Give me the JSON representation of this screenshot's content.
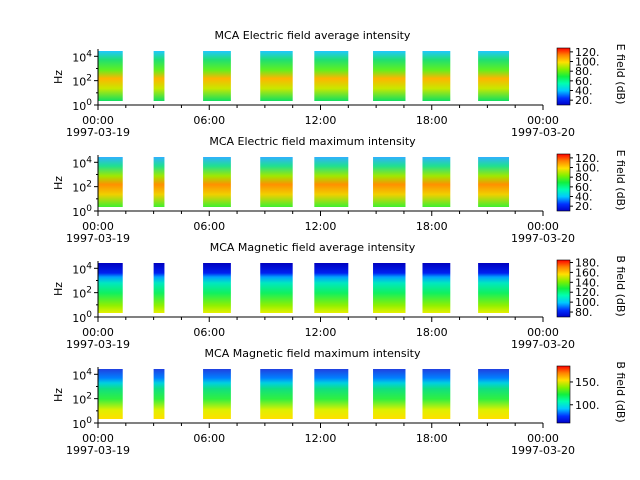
{
  "chart_data": [
    {
      "type": "heatmap",
      "title": "MCA  Electric field average intensity",
      "ylabel": "Hz",
      "y_scale": "log",
      "y_ticks": [
        {
          "base": "10",
          "exp": "0"
        },
        {
          "base": "10",
          "exp": "2"
        },
        {
          "base": "10",
          "exp": "4"
        }
      ],
      "x_ticks": [
        "00:00",
        "06:00",
        "12:00",
        "18:00",
        "00:00"
      ],
      "x_tick_dates": [
        "1997-03-19",
        "1997-03-20"
      ],
      "x_range": [
        "1997-03-19 00:00",
        "1997-03-20 00:00"
      ],
      "data_segments": [
        [
          "00:00",
          "01:20"
        ],
        [
          "03:00",
          "03:35"
        ],
        [
          "05:40",
          "07:10"
        ],
        [
          "08:45",
          "10:30"
        ],
        [
          "11:40",
          "13:30"
        ],
        [
          "14:50",
          "16:35"
        ],
        [
          "17:30",
          "19:00"
        ],
        [
          "20:30",
          "22:10"
        ]
      ],
      "colorbar_label": "E field (dB)",
      "colorbar_ticks": [
        "20.",
        "40.",
        "60.",
        "80.",
        "100.",
        "120."
      ],
      "colorbar_range": [
        10,
        128
      ],
      "colormap": "rainbow"
    },
    {
      "type": "heatmap",
      "title": "MCA  Electric field maximum intensity",
      "ylabel": "Hz",
      "y_scale": "log",
      "y_ticks": [
        {
          "base": "10",
          "exp": "0"
        },
        {
          "base": "10",
          "exp": "2"
        },
        {
          "base": "10",
          "exp": "4"
        }
      ],
      "x_ticks": [
        "00:00",
        "06:00",
        "12:00",
        "18:00",
        "00:00"
      ],
      "x_tick_dates": [
        "1997-03-19",
        "1997-03-20"
      ],
      "x_range": [
        "1997-03-19 00:00",
        "1997-03-20 00:00"
      ],
      "data_segments": [
        [
          "00:00",
          "01:20"
        ],
        [
          "03:00",
          "03:35"
        ],
        [
          "05:40",
          "07:10"
        ],
        [
          "08:45",
          "10:30"
        ],
        [
          "11:40",
          "13:30"
        ],
        [
          "14:50",
          "16:35"
        ],
        [
          "17:30",
          "19:00"
        ],
        [
          "20:30",
          "22:10"
        ]
      ],
      "colorbar_label": "E field (dB)",
      "colorbar_ticks": [
        "20.",
        "40.",
        "60.",
        "80.",
        "100.",
        "120."
      ],
      "colorbar_range": [
        10,
        128
      ],
      "colormap": "rainbow"
    },
    {
      "type": "heatmap",
      "title": "MCA  Magnetic field average intensity",
      "ylabel": "Hz",
      "y_scale": "log",
      "y_ticks": [
        {
          "base": "10",
          "exp": "0"
        },
        {
          "base": "10",
          "exp": "2"
        },
        {
          "base": "10",
          "exp": "4"
        }
      ],
      "x_ticks": [
        "00:00",
        "06:00",
        "12:00",
        "18:00",
        "00:00"
      ],
      "x_tick_dates": [
        "1997-03-19",
        "1997-03-20"
      ],
      "x_range": [
        "1997-03-19 00:00",
        "1997-03-20 00:00"
      ],
      "data_segments": [
        [
          "00:00",
          "01:20"
        ],
        [
          "03:00",
          "03:35"
        ],
        [
          "05:40",
          "07:10"
        ],
        [
          "08:45",
          "10:30"
        ],
        [
          "11:40",
          "13:30"
        ],
        [
          "14:50",
          "16:35"
        ],
        [
          "17:30",
          "19:00"
        ],
        [
          "20:30",
          "22:10"
        ]
      ],
      "colorbar_label": "B field (dB)",
      "colorbar_ticks": [
        "80.",
        "100.",
        "120.",
        "140.",
        "160.",
        "180."
      ],
      "colorbar_range": [
        70,
        185
      ],
      "colormap": "rainbow"
    },
    {
      "type": "heatmap",
      "title": "MCA  Magnetic field maximum intensity",
      "ylabel": "Hz",
      "y_scale": "log",
      "y_ticks": [
        {
          "base": "10",
          "exp": "0"
        },
        {
          "base": "10",
          "exp": "2"
        },
        {
          "base": "10",
          "exp": "4"
        }
      ],
      "x_ticks": [
        "00:00",
        "06:00",
        "12:00",
        "18:00",
        "00:00"
      ],
      "x_tick_dates": [
        "1997-03-19",
        "1997-03-20"
      ],
      "x_range": [
        "1997-03-19 00:00",
        "1997-03-20 00:00"
      ],
      "data_segments": [
        [
          "00:00",
          "01:20"
        ],
        [
          "03:00",
          "03:35"
        ],
        [
          "05:40",
          "07:10"
        ],
        [
          "08:45",
          "10:30"
        ],
        [
          "11:40",
          "13:30"
        ],
        [
          "14:50",
          "16:35"
        ],
        [
          "17:30",
          "19:00"
        ],
        [
          "20:30",
          "22:10"
        ]
      ],
      "colorbar_label": "B field (dB)",
      "colorbar_ticks": [
        "100.",
        "150."
      ],
      "colorbar_range": [
        60,
        185
      ],
      "colormap": "rainbow"
    }
  ]
}
